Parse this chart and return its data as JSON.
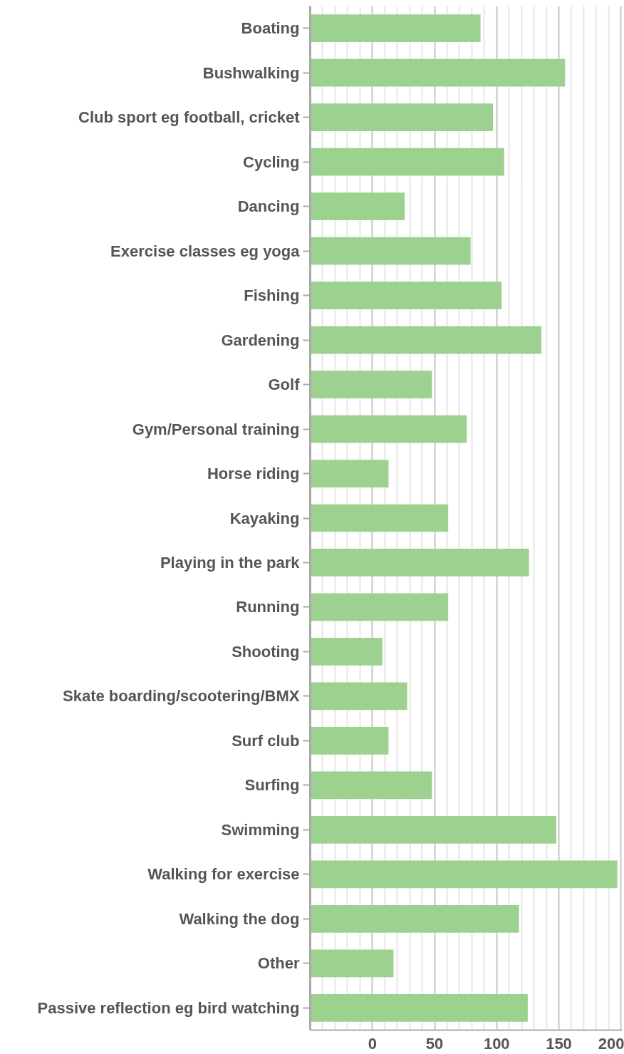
{
  "chart_data": {
    "type": "bar",
    "orientation": "horizontal",
    "categories": [
      "Boating",
      "Bushwalking",
      "Club sport eg football, cricket",
      "Cycling",
      "Dancing",
      "Exercise classes eg yoga",
      "Fishing",
      "Gardening",
      "Golf",
      "Gym/Personal training",
      "Horse riding",
      "Kayaking",
      "Playing in the park",
      "Running",
      "Shooting",
      "Skate boarding/scootering/BMX",
      "Surf club",
      "Surfing",
      "Swimming",
      "Walking for exercise",
      "Walking the dog",
      "Other",
      "Passive reflection eg bird watching"
    ],
    "base": [
      -50,
      -50,
      -50,
      -50,
      -50,
      -50,
      -50,
      -50,
      -50,
      -50,
      -50,
      -50,
      -50,
      -50,
      -50,
      -50,
      -50,
      -50,
      -50,
      -50,
      -50,
      -50,
      -50
    ],
    "values": [
      137,
      205,
      147,
      156,
      76,
      129,
      154,
      186,
      98,
      126,
      63,
      111,
      176,
      111,
      58,
      78,
      63,
      98,
      198,
      247,
      168,
      67,
      175
    ],
    "color": "#9dd18f",
    "xlim": [
      -50,
      201
    ],
    "xticks": [
      {
        "value": -50,
        "label": null
      },
      0,
      50,
      100,
      150,
      200
    ],
    "grid": "x"
  }
}
